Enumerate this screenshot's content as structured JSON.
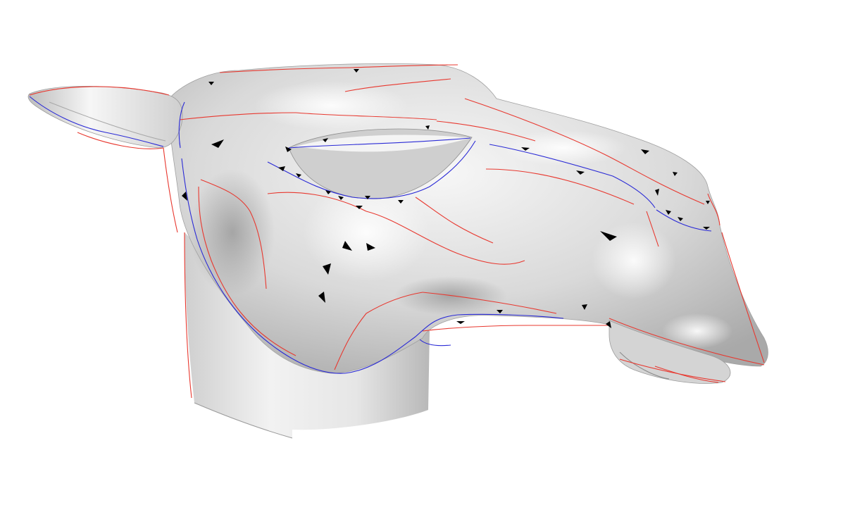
{
  "scene": {
    "subject": "shaded-3d-mesh-animal-head",
    "background_color": "#ffffff",
    "colors": {
      "ridge_line": "#e8382f",
      "valley_line": "#2a2ad6",
      "marker": "#000000",
      "surface_light": "#f4f4f4",
      "surface_mid": "#c9c9c9",
      "surface_dark": "#8d8d8d"
    }
  }
}
